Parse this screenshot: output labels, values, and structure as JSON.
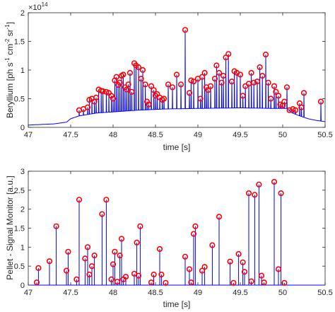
{
  "chart_data": [
    {
      "type": "line",
      "ylabel_parts": [
        "Beryllium [ph s",
        "-1",
        " cm",
        "-2",
        " sr",
        "-1",
        "]"
      ],
      "xlabel": "time [s]",
      "exponent_base": "×10",
      "exponent_power": "14",
      "xlim": [
        47,
        50.5
      ],
      "ylim": [
        0,
        2
      ],
      "xticks": [
        "47",
        "47.5",
        "48",
        "48.5",
        "49",
        "49.5",
        "50",
        "50.5"
      ],
      "yticks": [
        "0",
        "0.5",
        "1",
        "1.5",
        "2"
      ],
      "grid": false,
      "series": [
        {
          "kind": "signal",
          "color": "#0000ff",
          "baseline": [
            [
              47.0,
              0.04
            ],
            [
              47.3,
              0.06
            ],
            [
              47.45,
              0.09
            ],
            [
              47.5,
              0.15
            ],
            [
              47.6,
              0.2
            ],
            [
              47.8,
              0.25
            ],
            [
              48.0,
              0.27
            ],
            [
              48.3,
              0.3
            ],
            [
              48.6,
              0.32
            ],
            [
              49.0,
              0.33
            ],
            [
              49.5,
              0.34
            ],
            [
              49.9,
              0.33
            ],
            [
              50.05,
              0.33
            ],
            [
              50.1,
              0.26
            ],
            [
              50.2,
              0.2
            ],
            [
              50.3,
              0.15
            ],
            [
              50.4,
              0.12
            ],
            [
              50.5,
              0.1
            ]
          ]
        },
        {
          "kind": "markers",
          "color": "#ff0000",
          "points": [
            [
              47.6,
              0.3
            ],
            [
              47.65,
              0.32
            ],
            [
              47.7,
              0.35
            ],
            [
              47.72,
              0.48
            ],
            [
              47.75,
              0.5
            ],
            [
              47.78,
              0.45
            ],
            [
              47.8,
              0.52
            ],
            [
              47.83,
              0.66
            ],
            [
              47.86,
              0.64
            ],
            [
              47.88,
              0.63
            ],
            [
              47.92,
              0.62
            ],
            [
              47.95,
              0.6
            ],
            [
              47.98,
              0.55
            ],
            [
              48.0,
              0.5
            ],
            [
              48.02,
              0.82
            ],
            [
              48.04,
              0.88
            ],
            [
              48.06,
              0.74
            ],
            [
              48.08,
              0.78
            ],
            [
              48.1,
              0.9
            ],
            [
              48.12,
              0.92
            ],
            [
              48.14,
              0.7
            ],
            [
              48.16,
              0.66
            ],
            [
              48.18,
              0.75
            ],
            [
              48.2,
              0.95
            ],
            [
              48.22,
              0.62
            ],
            [
              48.25,
              1.12
            ],
            [
              48.27,
              1.08
            ],
            [
              48.3,
              1.05
            ],
            [
              48.33,
              0.85
            ],
            [
              48.35,
              1.0
            ],
            [
              48.38,
              0.75
            ],
            [
              48.4,
              0.45
            ],
            [
              48.42,
              0.4
            ],
            [
              48.45,
              0.72
            ],
            [
              48.48,
              0.65
            ],
            [
              48.5,
              0.55
            ],
            [
              48.52,
              0.58
            ],
            [
              48.55,
              0.52
            ],
            [
              48.58,
              0.48
            ],
            [
              48.6,
              0.5
            ],
            [
              48.65,
              0.75
            ],
            [
              48.7,
              0.7
            ],
            [
              48.75,
              0.92
            ],
            [
              48.8,
              0.75
            ],
            [
              48.85,
              1.7
            ],
            [
              48.9,
              0.6
            ],
            [
              48.92,
              0.82
            ],
            [
              48.95,
              0.8
            ],
            [
              49.0,
              0.85
            ],
            [
              49.03,
              0.5
            ],
            [
              49.05,
              0.88
            ],
            [
              49.08,
              0.95
            ],
            [
              49.1,
              0.7
            ],
            [
              49.12,
              0.65
            ],
            [
              49.15,
              0.72
            ],
            [
              49.2,
              0.85
            ],
            [
              49.22,
              1.08
            ],
            [
              49.25,
              0.95
            ],
            [
              49.28,
              0.78
            ],
            [
              49.3,
              0.9
            ],
            [
              49.33,
              1.22
            ],
            [
              49.36,
              1.28
            ],
            [
              49.4,
              0.8
            ],
            [
              49.43,
              0.98
            ],
            [
              49.46,
              0.95
            ],
            [
              49.5,
              0.92
            ],
            [
              49.53,
              0.55
            ],
            [
              49.56,
              0.72
            ],
            [
              49.6,
              0.76
            ],
            [
              49.63,
              0.95
            ],
            [
              49.66,
              0.78
            ],
            [
              49.7,
              0.8
            ],
            [
              49.73,
              1.05
            ],
            [
              49.76,
              0.9
            ],
            [
              49.8,
              1.27
            ],
            [
              49.83,
              0.78
            ],
            [
              49.86,
              0.5
            ],
            [
              49.9,
              0.72
            ],
            [
              49.92,
              0.62
            ],
            [
              49.95,
              0.55
            ],
            [
              49.97,
              0.4
            ],
            [
              50.0,
              0.38
            ],
            [
              50.02,
              0.45
            ],
            [
              50.05,
              0.7
            ],
            [
              50.08,
              0.3
            ],
            [
              50.12,
              0.32
            ],
            [
              50.15,
              0.3
            ],
            [
              50.2,
              0.42
            ],
            [
              50.22,
              0.35
            ],
            [
              50.25,
              0.6
            ],
            [
              50.45,
              0.45
            ]
          ]
        }
      ]
    },
    {
      "type": "line",
      "ylabel": "Pellet - Signal Monitor [a.u.]",
      "xlabel": "time [s]",
      "xlim": [
        47,
        50.5
      ],
      "ylim": [
        0,
        3
      ],
      "xticks": [
        "47",
        "47.5",
        "48",
        "48.5",
        "49",
        "49.5",
        "50",
        "50.5"
      ],
      "yticks": [
        "0",
        "0.5",
        "1",
        "1.5",
        "2",
        "2.5",
        "3"
      ],
      "grid": false,
      "series": [
        {
          "kind": "stems",
          "color": "#0000ff",
          "markers_color": "#ff0000",
          "points": [
            [
              47.1,
              0.07
            ],
            [
              47.12,
              0.45
            ],
            [
              47.25,
              0.63
            ],
            [
              47.33,
              1.55
            ],
            [
              47.45,
              0.38
            ],
            [
              47.47,
              0.88
            ],
            [
              47.57,
              0.15
            ],
            [
              47.6,
              2.25
            ],
            [
              47.67,
              0.7
            ],
            [
              47.7,
              1.0
            ],
            [
              47.72,
              0.28
            ],
            [
              47.75,
              0.5
            ],
            [
              47.78,
              0.78
            ],
            [
              47.87,
              1.87
            ],
            [
              47.92,
              2.25
            ],
            [
              47.98,
              0.15
            ],
            [
              48.0,
              0.55
            ],
            [
              48.02,
              0.88
            ],
            [
              48.05,
              0.09
            ],
            [
              48.08,
              0.78
            ],
            [
              48.1,
              1.22
            ],
            [
              48.12,
              0.15
            ],
            [
              48.15,
              0.22
            ],
            [
              48.25,
              0.3
            ],
            [
              48.28,
              1.12
            ],
            [
              48.3,
              0.25
            ],
            [
              48.32,
              1.55
            ],
            [
              48.45,
              0.07
            ],
            [
              48.48,
              0.28
            ],
            [
              48.55,
              0.95
            ],
            [
              48.57,
              0.28
            ],
            [
              48.62,
              0.06
            ],
            [
              48.85,
              0.75
            ],
            [
              48.9,
              0.42
            ],
            [
              48.92,
              0.07
            ],
            [
              48.95,
              1.35
            ],
            [
              48.97,
              1.55
            ],
            [
              49.05,
              0.38
            ],
            [
              49.08,
              0.48
            ],
            [
              49.17,
              1.05
            ],
            [
              49.25,
              1.8
            ],
            [
              49.38,
              0.62
            ],
            [
              49.42,
              0.06
            ],
            [
              49.48,
              0.82
            ],
            [
              49.53,
              0.6
            ],
            [
              49.55,
              0.35
            ],
            [
              49.6,
              2.42
            ],
            [
              49.63,
              0.1
            ],
            [
              49.67,
              2.38
            ],
            [
              49.72,
              2.65
            ],
            [
              49.75,
              0.25
            ],
            [
              49.78,
              0.07
            ],
            [
              49.9,
              2.72
            ],
            [
              49.95,
              0.42
            ],
            [
              49.98,
              2.42
            ],
            [
              50.02,
              0.06
            ]
          ]
        }
      ]
    }
  ]
}
